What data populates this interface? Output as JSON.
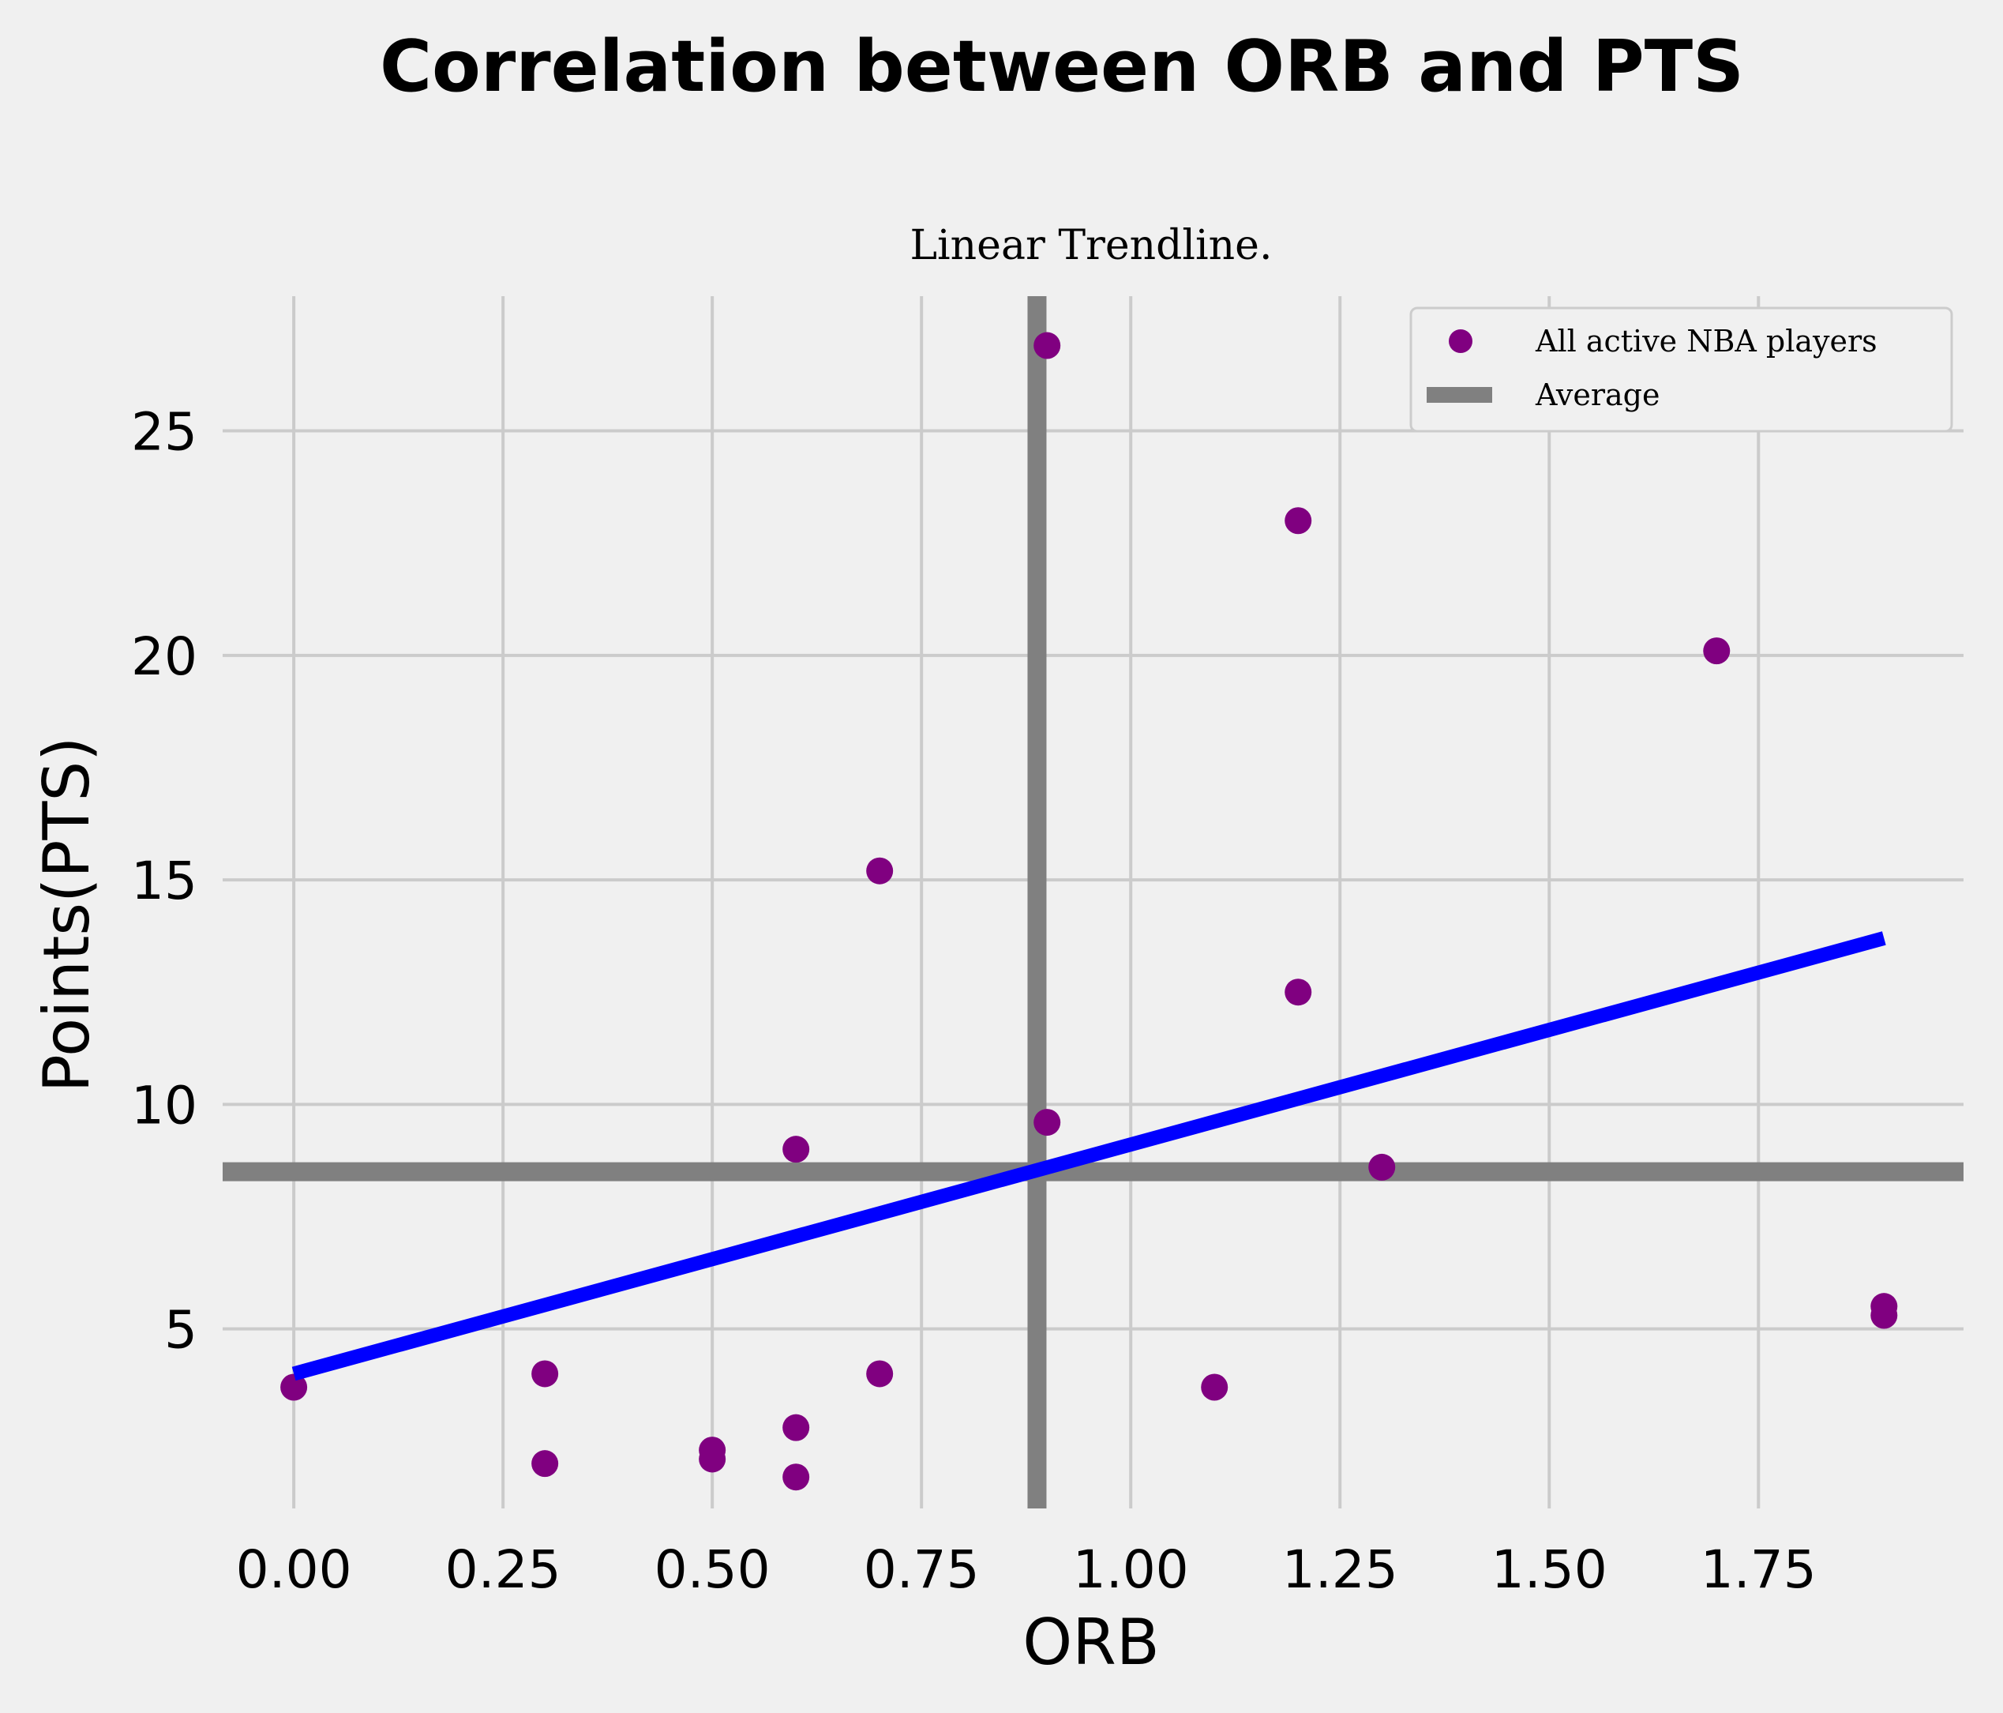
{
  "chart_data": {
    "type": "scatter",
    "title": "Correlation between ORB and PTS",
    "subtitle": "Linear Trendline.",
    "xlabel": "ORB",
    "ylabel": "Points(PTS)",
    "xlim": [
      -0.085,
      1.995
    ],
    "ylim": [
      1.0,
      28.0
    ],
    "xticks": [
      0.0,
      0.25,
      0.5,
      0.75,
      1.0,
      1.25,
      1.5,
      1.75
    ],
    "xtick_labels": [
      "0.00",
      "0.25",
      "0.50",
      "0.75",
      "1.00",
      "1.25",
      "1.50",
      "1.75"
    ],
    "yticks": [
      5,
      10,
      15,
      20,
      25
    ],
    "ytick_labels": [
      "5",
      "10",
      "15",
      "20",
      "25"
    ],
    "grid": true,
    "legend_position": "top-right",
    "series": [
      {
        "name": "All active NBA players",
        "kind": "scatter",
        "color": "#800080",
        "points": [
          {
            "x": 0.0,
            "y": 3.7
          },
          {
            "x": 0.3,
            "y": 4.0
          },
          {
            "x": 0.3,
            "y": 2.0
          },
          {
            "x": 0.5,
            "y": 2.3
          },
          {
            "x": 0.5,
            "y": 2.1
          },
          {
            "x": 0.6,
            "y": 9.0
          },
          {
            "x": 0.6,
            "y": 2.8
          },
          {
            "x": 0.6,
            "y": 1.7
          },
          {
            "x": 0.7,
            "y": 15.2
          },
          {
            "x": 0.7,
            "y": 4.0
          },
          {
            "x": 0.9,
            "y": 26.9
          },
          {
            "x": 0.9,
            "y": 9.6
          },
          {
            "x": 1.1,
            "y": 3.7
          },
          {
            "x": 1.2,
            "y": 23.0
          },
          {
            "x": 1.2,
            "y": 12.5
          },
          {
            "x": 1.3,
            "y": 8.6
          },
          {
            "x": 1.7,
            "y": 20.1
          },
          {
            "x": 1.9,
            "y": 5.5
          },
          {
            "x": 1.9,
            "y": 5.3
          }
        ]
      },
      {
        "name": "Average",
        "kind": "reference-lines",
        "color": "#808080",
        "x_mean": 0.888,
        "y_mean": 8.5
      },
      {
        "kind": "trendline",
        "color": "#0000ff",
        "x": [
          0.0,
          1.9
        ],
        "y": [
          4.0,
          13.7
        ]
      }
    ]
  }
}
